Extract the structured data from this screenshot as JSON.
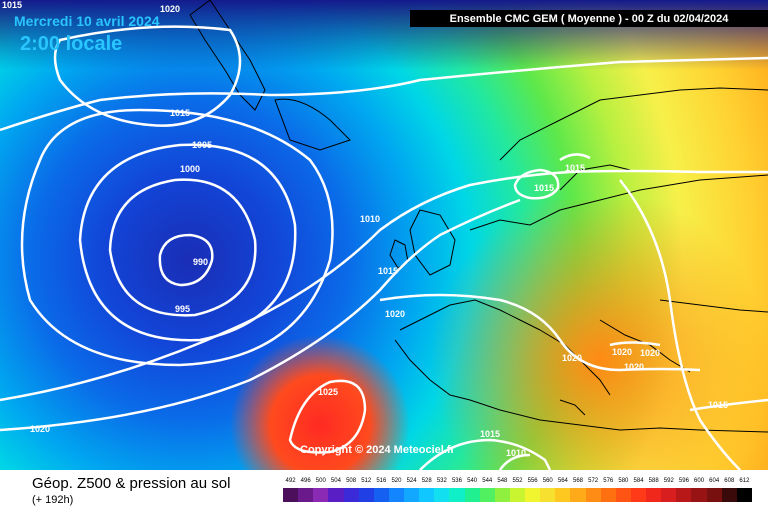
{
  "header": {
    "date": "Mercredi 10 avril 2024",
    "time": "2:00 locale",
    "run_info": "Ensemble CMC GEM  ( Moyenne )  -  00 Z du 02/04/2024",
    "corner_label": "1015"
  },
  "map": {
    "copyright": "Copyright © 2024 Meteociel.fr",
    "isobar_labels": [
      "1020",
      "1015",
      "1005",
      "1000",
      "990",
      "995",
      "1010",
      "1015",
      "1020",
      "1025",
      "1020",
      "1020",
      "1020",
      "1020",
      "1015",
      "1015",
      "1010",
      "1015",
      "1015",
      "1020"
    ],
    "colors": {
      "deep_low": "#1a2db5",
      "mid": "#00d7e6",
      "green": "#5ee84a",
      "yellow": "#f7f04a",
      "orange": "#ff9a12",
      "red": "#ff3d26"
    }
  },
  "footer": {
    "title": "Géop. Z500 & pression au sol",
    "subtitle": "(+ 192h)"
  },
  "scale": {
    "labels": [
      "492",
      "496",
      "500",
      "504",
      "508",
      "512",
      "516",
      "520",
      "524",
      "528",
      "532",
      "536",
      "540",
      "544",
      "548",
      "552",
      "556",
      "560",
      "564",
      "568",
      "572",
      "576",
      "580",
      "584",
      "588",
      "592",
      "596",
      "600",
      "604",
      "608",
      "612"
    ],
    "colors": [
      "#4b0f5c",
      "#6a1a8a",
      "#8a2ab5",
      "#5a1fc4",
      "#3a2ad8",
      "#2040e6",
      "#1560f0",
      "#1285ff",
      "#12a8ff",
      "#10c8ff",
      "#12e0f0",
      "#10f0c8",
      "#20f090",
      "#50f060",
      "#90f040",
      "#c8f530",
      "#f0f530",
      "#f8e030",
      "#ffc820",
      "#ffaa18",
      "#ff8c14",
      "#ff7010",
      "#ff5414",
      "#ff3a18",
      "#f0281c",
      "#d81e1e",
      "#b81818",
      "#981414",
      "#781010",
      "#3a0a0a",
      "#000000"
    ]
  }
}
